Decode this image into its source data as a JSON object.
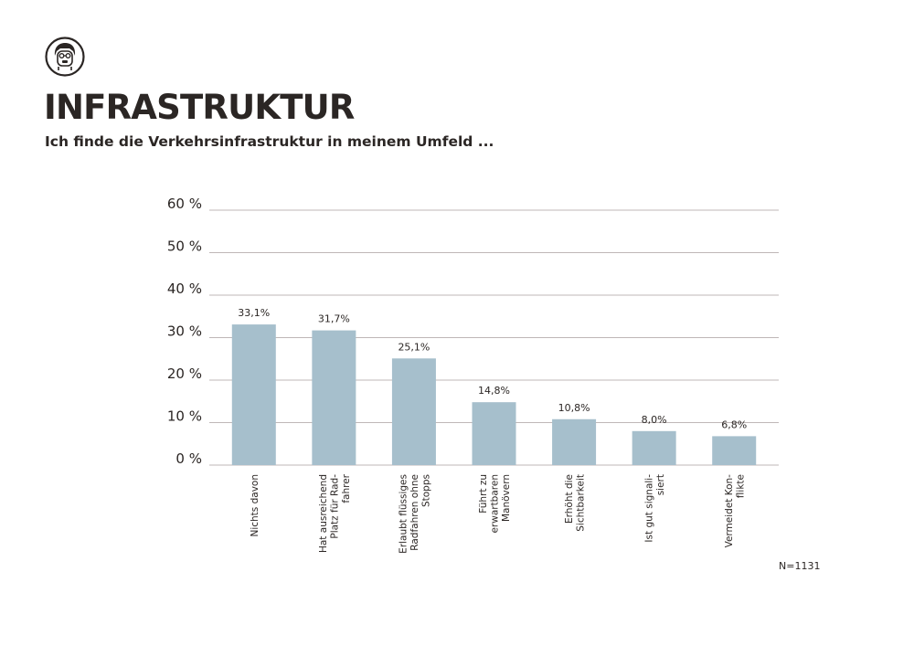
{
  "header": {
    "title": "INFRASTRUKTUR",
    "subtitle": "Ich finde die Verkehrsinfrastruktur in meinem Umfeld ..."
  },
  "footnote": "N=1131",
  "colors": {
    "bar": "#a6bfcc",
    "grid": "#bfb7b7",
    "text": "#2b2624"
  },
  "chart_data": {
    "type": "bar",
    "categories": [
      [
        "Nichts davon"
      ],
      [
        "Hat ausreichend",
        "Platz für Rad-",
        "fahrer"
      ],
      [
        "Erlaubt flüssiges",
        "Radfahren ohne",
        "Stopps"
      ],
      [
        "Führt zu",
        "erwartbaren",
        "Manövern"
      ],
      [
        "Erhöht die",
        "Sichtbarkeit"
      ],
      [
        "Ist gut signali-",
        "siert"
      ],
      [
        "Vermeidet Kon-",
        "flikte"
      ]
    ],
    "values": [
      33.1,
      31.7,
      25.1,
      14.8,
      10.8,
      8.0,
      6.8
    ],
    "data_labels": [
      "33,1%",
      "31,7%",
      "25,1%",
      "14,8%",
      "10,8%",
      "8,0%",
      "6,8%"
    ],
    "yticks": [
      0,
      10,
      20,
      30,
      40,
      50,
      60
    ],
    "ytick_labels": [
      "0 %",
      "10 %",
      "20 %",
      "30 %",
      "40 %",
      "50 %",
      "60 %"
    ],
    "ylim": [
      0,
      60
    ],
    "grid": true,
    "xlabel_rotation": "vertical"
  }
}
